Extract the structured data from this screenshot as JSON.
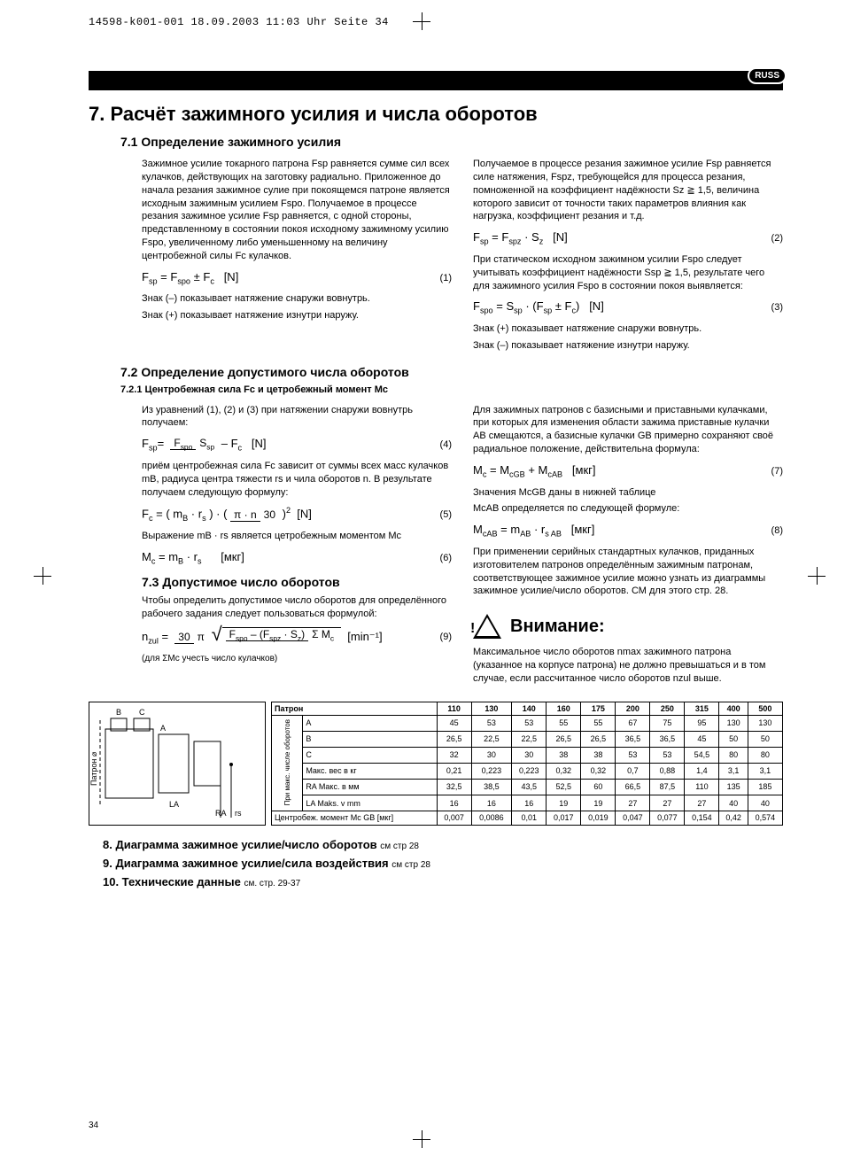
{
  "meta_header": "14598-k001-001   18.09.2003   11:03 Uhr   Seite 34",
  "badge": "RUSS",
  "title": "7. Расчёт зажимного усилия и числа оборотов",
  "s71_head": "7.1 Определение зажимного усилия",
  "s71_l_p1": "Зажимное усилие токарного патрона Fsp равняется сумме сил всех кулачков, действующих на заготовку радиально. Приложенное до начала резания зажимное сулие при покоящемся патроне является исходным зажимным усилием Fspo. Получаемое в процессе резания зажимное усилие Fsp равняется, с одной стороны, представленному в состоянии покоя исходному зажимному усилию Fspo, увеличенному либо уменьшенному на величину центробежной силы Fc кулачков.",
  "s71_l_eq1_lhs": "Fsp = Fspo ± Fc    [N]",
  "s71_l_eq1_num": "(1)",
  "s71_l_p2": "Знак (–) показывает натяжение снаружи вовнутрь.",
  "s71_l_p3": "Знак (+) показывает натяжение изнутри наружу.",
  "s71_r_p1": "Получаемое в процессе резания зажимное усилие Fsp равняется силе натяжения, Fspz, требующейся для процесса резания, помноженной на коэффициент надёжности Sz ≧ 1,5, величина которого зависит от точности таких параметров влияния как нагрузка, коэффициент резания и т.д.",
  "s71_r_eq2": "Fsp = Fspz · Sz    [N]",
  "s71_r_eq2_num": "(2)",
  "s71_r_p2": "При статическом исходном зажимном усилии Fspo следует учитывать коэффициент надёжности Ssp ≧ 1,5, результате чего для зажимного усилия Fspo в состоянии покоя выявляется:",
  "s71_r_eq3": "Fspo = Ssp · (Fsp ± Fc)   [N]",
  "s71_r_eq3_num": "(3)",
  "s71_r_p3": "Знак (+) показывает натяжение снаружи вовнутрь.",
  "s71_r_p4": "Знак (–) показывает натяжение изнутри наружу.",
  "s72_head": "7.2 Определение допустимого числа оборотов",
  "s721_head": "7.2.1 Центробежная сила Fc и цетробежный момент Mc",
  "s72_l_p1": "Из уравнений (1), (2) и (3) при натяжении снаружи вовнутрь получаем:",
  "s72_l_eq4_num": "(4)",
  "s72_l_p2": "приём центробежная сила Fc зависит от суммы всех масс кулачков mB, радиуса центра тяжести rs и чила оборотов n. В результате получаем следующую формулу:",
  "s72_l_eq5_num": "(5)",
  "s72_l_p3": "Выражение mB · rs является цетробежным моментом Mc",
  "s72_l_eq6": "Mc = mB · rs       [мкг]",
  "s72_l_eq6_num": "(6)",
  "s72_r_p1": "Для зажимных патронов с базисными и приставными кулачками, при которых для изменения области зажима приставные кулачки  AB смещаются, а базисные кулачки GB примерно сохраняют своё радиальное положение, действительна формула:",
  "s72_r_eq7": "Mc = McGB + McAB   [мкг]",
  "s72_r_eq7_num": "(7)",
  "s72_r_p2": "Значения McGB даны в нижней таблице",
  "s72_r_p3": "McAB определяется по следующей формуле:",
  "s72_r_eq8": "McAB = mAB · rs AB   [мкг]",
  "s72_r_eq8_num": "(8)",
  "s72_r_p4": "При применении серийных стандартных кулачков, приданных изготовителем патронов определённым зажимным патронам, соответствующее зажимное усилие можно узнать из диаграммы зажимное усилие/число оборотов. СМ для этого стр. 28.",
  "s73_head": "7.3 Допустимое число оборотов",
  "s73_p1": "Чтобы определить допустимое число оборотов для определённого рабочего задания следует пользоваться формулой:",
  "s73_eq9_unit": "[min⁻¹]",
  "s73_eq9_num": "(9)",
  "s73_note": "(для ΣMc учесть число кулачков)",
  "warn_title": "Внимание:",
  "warn_body": "Максимальное число оборотов nmax зажимного патрона (указанное на корпусе патрона) не должно превышаться и в том случае, если рассчитанное число оборотов nzul выше.",
  "table": {
    "col_header": "Патрон",
    "cols": [
      "110",
      "130",
      "140",
      "160",
      "175",
      "200",
      "250",
      "315",
      "400",
      "500"
    ],
    "side_label": "При макс. числе оборотов",
    "rows": [
      {
        "label": "A",
        "vals": [
          "45",
          "53",
          "53",
          "55",
          "55",
          "67",
          "75",
          "95",
          "130",
          "130"
        ]
      },
      {
        "label": "B",
        "vals": [
          "26,5",
          "22,5",
          "22,5",
          "26,5",
          "26,5",
          "36,5",
          "36,5",
          "45",
          "50",
          "50"
        ]
      },
      {
        "label": "C",
        "vals": [
          "32",
          "30",
          "30",
          "38",
          "38",
          "53",
          "53",
          "54,5",
          "80",
          "80"
        ]
      },
      {
        "label": "Макс. вес в кг",
        "vals": [
          "0,21",
          "0,223",
          "0,223",
          "0,32",
          "0,32",
          "0,7",
          "0,88",
          "1,4",
          "3,1",
          "3,1"
        ]
      },
      {
        "label": "RA Макс. в мм",
        "vals": [
          "32,5",
          "38,5",
          "43,5",
          "52,5",
          "60",
          "66,5",
          "87,5",
          "110",
          "135",
          "185"
        ]
      },
      {
        "label": "LA Maks. v mm",
        "vals": [
          "16",
          "16",
          "16",
          "19",
          "19",
          "27",
          "27",
          "27",
          "40",
          "40"
        ]
      },
      {
        "label": "Центробеж. момент Mc GB [мкг]",
        "vals": [
          "0,007",
          "0,0086",
          "0,01",
          "0,017",
          "0,019",
          "0,047",
          "0,077",
          "0,154",
          "0,42",
          "0,574"
        ]
      }
    ]
  },
  "diagram_labels": {
    "patron": "Патрон ⌀",
    "B": "B",
    "C": "C",
    "A": "A",
    "LA": "LA",
    "RA": "RA",
    "rs": "rs"
  },
  "item8": "8. Диаграмма зажимное усилие/число оборотов",
  "item8_ref": "см стр 28",
  "item9": "9. Диаграмма зажимное усилие/сила воздействия",
  "item9_ref": "см стр 28",
  "item10": "10. Технические данные",
  "item10_ref": "см. стр. 29-37",
  "page_number": "34"
}
